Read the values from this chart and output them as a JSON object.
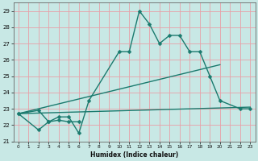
{
  "xlabel": "Humidex (Indice chaleur)",
  "xlim": [
    -0.5,
    23.5
  ],
  "ylim": [
    21,
    29.5
  ],
  "yticks": [
    21,
    22,
    23,
    24,
    25,
    26,
    27,
    28,
    29
  ],
  "xticks": [
    0,
    1,
    2,
    3,
    4,
    5,
    6,
    7,
    8,
    9,
    10,
    11,
    12,
    13,
    14,
    15,
    16,
    17,
    18,
    19,
    20,
    21,
    22,
    23
  ],
  "bg_color": "#c8e8e5",
  "grid_color": "#e8a0a8",
  "line_color": "#1a7a6e",
  "line1_x": [
    0,
    2,
    3,
    4,
    5,
    6
  ],
  "line1_y": [
    22.7,
    21.7,
    22.2,
    22.3,
    22.2,
    22.2
  ],
  "line2_x": [
    0,
    2,
    3,
    4,
    5,
    6,
    7,
    10,
    11,
    12,
    13,
    14,
    15,
    16,
    17,
    18,
    19,
    20,
    22,
    23
  ],
  "line2_y": [
    22.7,
    22.9,
    22.2,
    22.5,
    22.5,
    21.5,
    23.5,
    26.5,
    26.5,
    29.0,
    28.2,
    27.0,
    27.5,
    27.5,
    26.5,
    26.5,
    25.0,
    23.5,
    23.0,
    23.0
  ],
  "line3_x": [
    0,
    20
  ],
  "line3_y": [
    22.7,
    25.7
  ],
  "line4_x": [
    0,
    23
  ],
  "line4_y": [
    22.7,
    23.1
  ]
}
